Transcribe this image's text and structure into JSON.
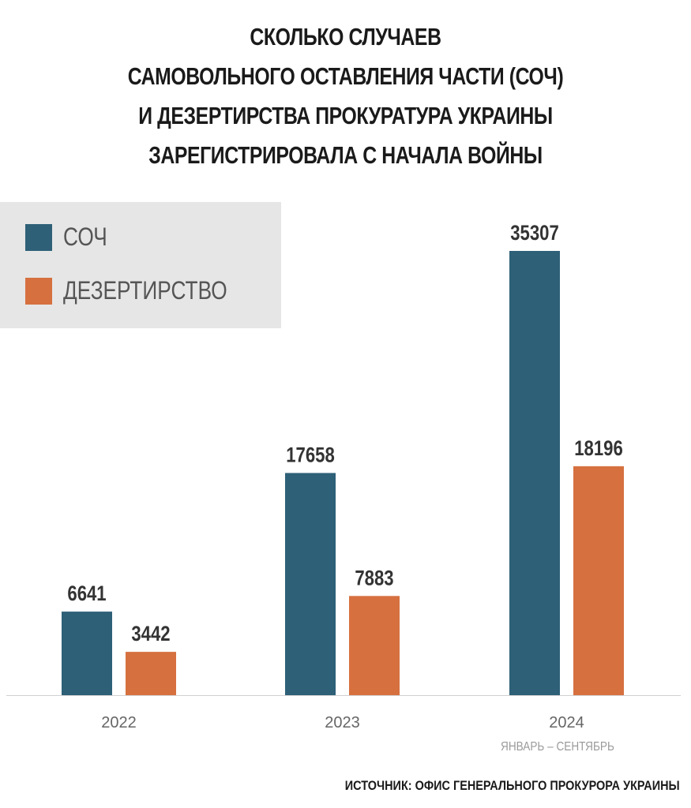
{
  "chart_data": {
    "type": "bar",
    "title": [
      "СКОЛЬКО СЛУЧАЕВ",
      "САМОВОЛЬНОГО ОСТАВЛЕНИЯ ЧАСТИ (СОЧ)",
      "И ДЕЗЕРТИРСТВА ПРОКУРАТУРА УКРАИНЫ",
      "ЗАРЕГИСТРИРОВАЛА С НАЧАЛА ВОЙНЫ"
    ],
    "categories": [
      "2022",
      "2023",
      "2024"
    ],
    "series": [
      {
        "name": "СОЧ",
        "color": "#2e6078",
        "values": [
          6641,
          17658,
          35307
        ]
      },
      {
        "name": "ДЕЗЕРТИРСТВО",
        "color": "#d6703f",
        "values": [
          3442,
          7883,
          18196
        ]
      }
    ],
    "legend_position": "top-left",
    "ylim": [
      0,
      35307
    ],
    "grid": false,
    "note": "ЯНВАРЬ – СЕНТЯБРЬ",
    "source": "ИСТОЧНИК: ОФИС ГЕНЕРАЛЬНОГО ПРОКУРОРА УКРАИНЫ"
  }
}
